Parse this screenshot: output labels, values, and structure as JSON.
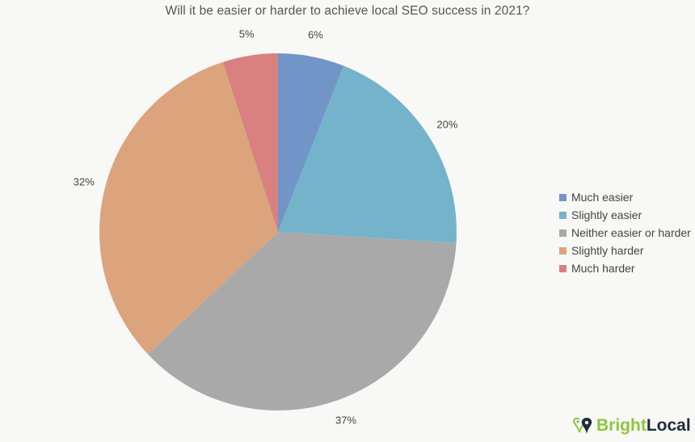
{
  "chart_data": {
    "type": "pie",
    "title": "Will it be easier or harder to achieve local SEO success in 2021?",
    "categories": [
      "Much easier",
      "Slightly easier",
      "Neither easier or harder",
      "Slightly harder",
      "Much harder"
    ],
    "values": [
      6,
      20,
      37,
      32,
      5
    ],
    "labels": [
      "6%",
      "20%",
      "37%",
      "32%",
      "5%"
    ],
    "colors": [
      "#7295c8",
      "#74b3c9",
      "#a9a9a9",
      "#dba47c",
      "#d98080"
    ],
    "start_angle": "12 o'clock, clockwise",
    "legend_position": "right"
  },
  "brand": {
    "part1": "Bright",
    "part2": "Local"
  }
}
